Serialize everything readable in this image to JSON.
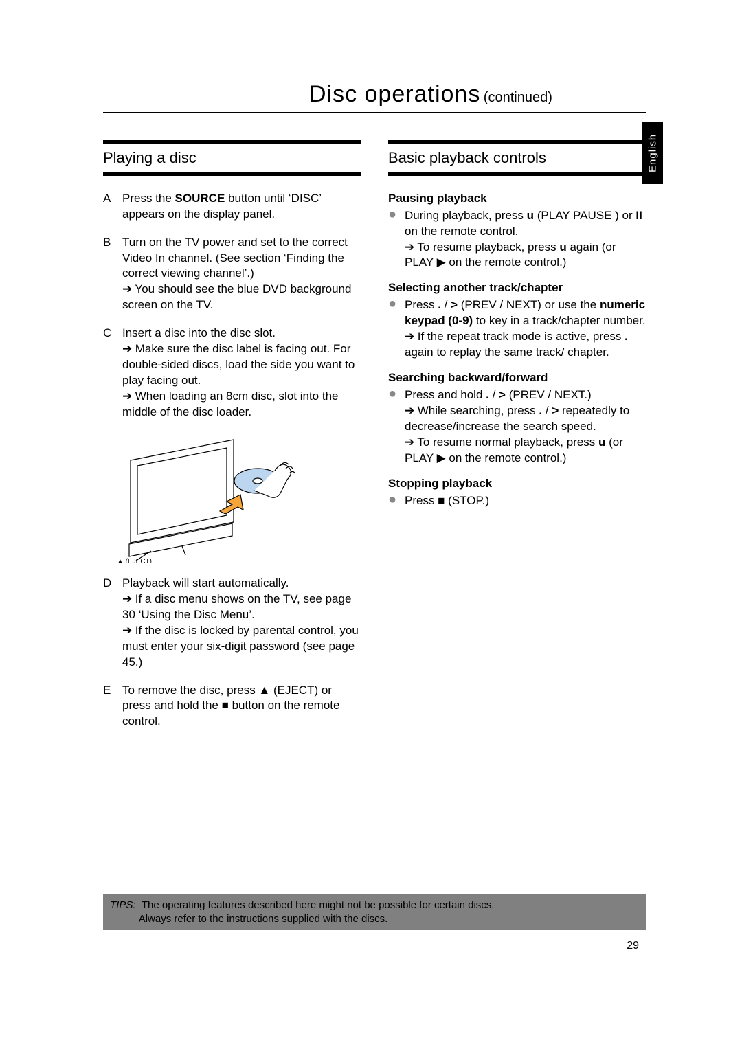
{
  "title": {
    "main": "Disc operations",
    "sub": "(continued)"
  },
  "languageTab": "English",
  "left": {
    "heading": "Playing a disc",
    "steps": [
      {
        "letter": "A",
        "lines": [
          "Press the <b>SOURCE</b> button until ‘DISC’ appears on the display panel."
        ]
      },
      {
        "letter": "B",
        "lines": [
          "Turn on the TV power and set to the correct Video In channel.  (See section ‘Finding the correct viewing channel’.)",
          "→ You should see the blue DVD background screen on the TV."
        ]
      },
      {
        "letter": "C",
        "lines": [
          "Insert a disc into the disc slot.",
          "→ Make sure the disc label is facing out. For double-sided discs, load the side you want to play facing out.",
          "→ When loading an 8cm disc, slot into the middle of the disc loader."
        ]
      },
      {
        "letter": "D",
        "lines": [
          "Playback will start automatically.",
          "→ If a disc menu shows on the TV, see page 30 ‘Using the Disc Menu’.",
          "→ If the disc is locked by parental control, you must enter your six-digit password (see page 45.)"
        ]
      },
      {
        "letter": "E",
        "lines": [
          "To remove the disc, press ▲ (EJECT) or press and hold the ■ button on the remote control."
        ]
      }
    ],
    "ejectLabel": "▲ (EJECT)"
  },
  "right": {
    "heading": "Basic playback controls",
    "groups": [
      {
        "subhead": "Pausing playback",
        "lines": [
          "During playback, press <b>u</b> (PLAY PAUSE ) or <b>II</b> on the remote control.",
          "→ To resume playback, press <b>u</b> again (or PLAY ▶ on the remote control.)"
        ]
      },
      {
        "subhead": "Selecting another track/chapter",
        "lines": [
          "Press <b>.</b> / <b>></b> (PREV / NEXT) or use the <b>numeric keypad (0-9)</b> to key in a track/chapter number.",
          "→ If the repeat track mode is active, press <b>.</b> again to replay the same track/ chapter."
        ]
      },
      {
        "subhead": "Searching backward/forward",
        "lines": [
          "Press and hold <b>.</b> / <b>></b> (PREV / NEXT.)",
          "→ While searching, press <b>.</b> / <b>></b> repeatedly to decrease/increase the search speed.",
          "→ To resume normal playback, press <b>u</b> (or PLAY ▶ on the remote control.)"
        ]
      },
      {
        "subhead": "Stopping playback",
        "lines": [
          "Press ■ (STOP.)"
        ]
      }
    ]
  },
  "tips": {
    "label": "TIPS:",
    "line1": "The operating features described here might not be possible for certain discs.",
    "line2": "Always refer to the instructions supplied with the discs."
  },
  "pageNumber": "29"
}
